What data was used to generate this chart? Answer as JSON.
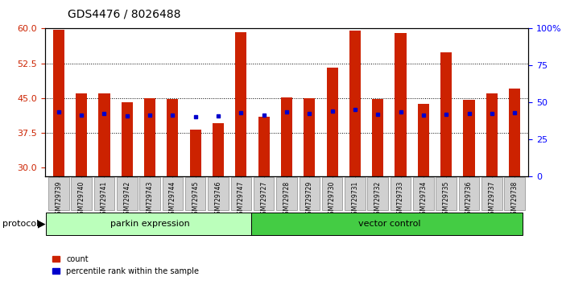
{
  "title": "GDS4476 / 8026488",
  "samples": [
    "GSM729739",
    "GSM729740",
    "GSM729741",
    "GSM729742",
    "GSM729743",
    "GSM729744",
    "GSM729745",
    "GSM729746",
    "GSM729747",
    "GSM729727",
    "GSM729728",
    "GSM729729",
    "GSM729730",
    "GSM729731",
    "GSM729732",
    "GSM729733",
    "GSM729734",
    "GSM729735",
    "GSM729736",
    "GSM729737",
    "GSM729738"
  ],
  "count_values": [
    59.8,
    46.0,
    46.0,
    44.0,
    45.0,
    44.8,
    38.2,
    39.5,
    59.2,
    41.0,
    45.2,
    45.0,
    51.5,
    59.5,
    44.7,
    59.0,
    43.7,
    54.8,
    44.6,
    46.0,
    47.0
  ],
  "percentile_values": [
    43.5,
    41.5,
    42.5,
    41.0,
    41.5,
    41.5,
    40.5,
    41.0,
    43.0,
    41.5,
    43.5,
    42.5,
    44.0,
    45.5,
    42.0,
    43.5,
    41.5,
    42.0,
    42.5,
    42.5,
    43.0
  ],
  "group1_count": 9,
  "group2_count": 12,
  "group1_label": "parkin expression",
  "group2_label": "vector control",
  "protocol_label": "protocol",
  "bar_color": "#cc2200",
  "marker_color": "#0000cc",
  "ylim_left": [
    28,
    60
  ],
  "ylim_right": [
    0,
    100
  ],
  "yticks_left": [
    30,
    37.5,
    45,
    52.5,
    60
  ],
  "yticks_right": [
    0,
    25,
    50,
    75,
    100
  ],
  "ytick_labels_right": [
    "0",
    "25",
    "50",
    "75",
    "100%"
  ],
  "legend_count_label": "count",
  "legend_pct_label": "percentile rank within the sample",
  "bg_color": "#ffffff",
  "grid_color": "#000000",
  "group1_bg": "#ccffcc",
  "group2_bg": "#44dd44",
  "xlabel_area_bg": "#cccccc"
}
